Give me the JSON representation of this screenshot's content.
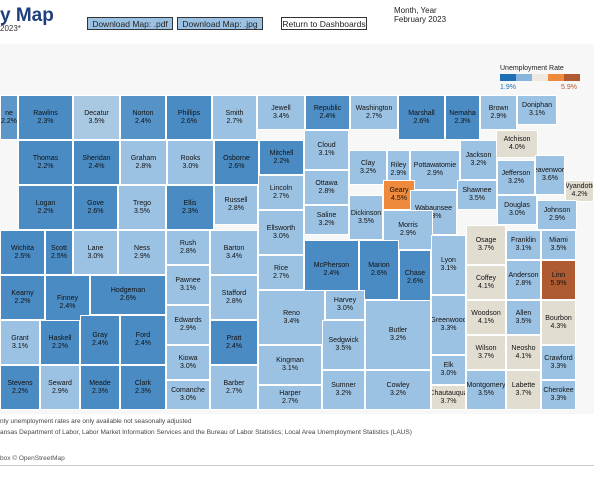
{
  "header": {
    "title": "y Map",
    "subtitle": "2023*",
    "btn_pdf": "Download Map: .pdf",
    "btn_jpg": "Download Map: .jpg",
    "btn_dash": "Return to Dashboards",
    "month_label": "Month, Year",
    "month_value": "February 2023"
  },
  "legend": {
    "title": "Unemployment Rate",
    "min": "1.9%",
    "max": "5.9%",
    "colors": [
      "#1f6fb4",
      "#86b4dc",
      "#eeeae2",
      "#ef8a3c",
      "#b05a32"
    ]
  },
  "footnote1": "nty unemployment rates are only available not seasonally adjusted",
  "footnote2": "ansas Department of Labor, Labor Market Information Services and the Bureau of Labor Statistics; Local Area Unemployment Statistics (LAUS)",
  "attribution": "box © OpenStreetMap",
  "counties": [
    {
      "name": "ne",
      "rate": "2.2%",
      "c": "#5d97c9"
    },
    {
      "name": "Rawlins",
      "rate": "2.3%",
      "c": "#4a8bc4"
    },
    {
      "name": "Decatur",
      "rate": "3.5%",
      "c": "#a9c8e2"
    },
    {
      "name": "Norton",
      "rate": "2.4%",
      "c": "#5592c7"
    },
    {
      "name": "Phillips",
      "rate": "2.6%",
      "c": "#4a8bc4"
    },
    {
      "name": "Smith",
      "rate": "2.7%",
      "c": "#9cc2e3"
    },
    {
      "name": "Jewell",
      "rate": "3.4%",
      "c": "#9cc2e3"
    },
    {
      "name": "Republic",
      "rate": "2.4%",
      "c": "#4f8fc5"
    },
    {
      "name": "Washington",
      "rate": "2.7%",
      "c": "#9cc2e3"
    },
    {
      "name": "Marshall",
      "rate": "2.6%",
      "c": "#4a8bc4"
    },
    {
      "name": "Nemaha",
      "rate": "2.3%",
      "c": "#4a8bc4"
    },
    {
      "name": "Brown",
      "rate": "2.9%",
      "c": "#9cc2e3"
    },
    {
      "name": "Doniphan",
      "rate": "3.1%",
      "c": "#9cc2e3"
    },
    {
      "name": "Atchison",
      "rate": "4.0%",
      "c": "#e2ddd1"
    },
    {
      "name": "Thomas",
      "rate": "2.2%",
      "c": "#4a8bc4"
    },
    {
      "name": "Sheridan",
      "rate": "2.4%",
      "c": "#4a8bc4"
    },
    {
      "name": "Graham",
      "rate": "2.8%",
      "c": "#9cc2e3"
    },
    {
      "name": "Rooks",
      "rate": "3.0%",
      "c": "#9cc2e3"
    },
    {
      "name": "Osborne",
      "rate": "2.6%",
      "c": "#4a8bc4"
    },
    {
      "name": "Mitchell",
      "rate": "2.2%",
      "c": "#4a8bc4"
    },
    {
      "name": "Cloud",
      "rate": "3.1%",
      "c": "#9cc2e3"
    },
    {
      "name": "Clay",
      "rate": "3.2%",
      "c": "#9cc2e3"
    },
    {
      "name": "Riley",
      "rate": "2.9%",
      "c": "#9cc2e3"
    },
    {
      "name": "Pottawatomie",
      "rate": "2.9%",
      "c": "#9cc2e3"
    },
    {
      "name": "Jackson",
      "rate": "3.2%",
      "c": "#9cc2e3"
    },
    {
      "name": "Jefferson",
      "rate": "3.2%",
      "c": "#9cc2e3"
    },
    {
      "name": "Leavenworth",
      "rate": "3.6%",
      "c": "#9cc2e3"
    },
    {
      "name": "Wyandotte",
      "rate": "4.2%",
      "c": "#e2ddd1"
    },
    {
      "name": "Logan",
      "rate": "2.2%",
      "c": "#4a8bc4"
    },
    {
      "name": "Gove",
      "rate": "2.6%",
      "c": "#4a8bc4"
    },
    {
      "name": "Trego",
      "rate": "3.5%",
      "c": "#9cc2e3"
    },
    {
      "name": "Ellis",
      "rate": "2.3%",
      "c": "#4a8bc4"
    },
    {
      "name": "Russell",
      "rate": "2.8%",
      "c": "#9cc2e3"
    },
    {
      "name": "Lincoln",
      "rate": "2.7%",
      "c": "#9cc2e3"
    },
    {
      "name": "Ottawa",
      "rate": "2.8%",
      "c": "#9cc2e3"
    },
    {
      "name": "Geary",
      "rate": "4.5%",
      "c": "#ef8a3c"
    },
    {
      "name": "Dickinson",
      "rate": "3.5%",
      "c": "#9cc2e3"
    },
    {
      "name": "Wabaunsee",
      "rate": "3.3%",
      "c": "#9cc2e3"
    },
    {
      "name": "Shawnee",
      "rate": "3.5%",
      "c": "#9cc2e3"
    },
    {
      "name": "Douglas",
      "rate": "3.0%",
      "c": "#9cc2e3"
    },
    {
      "name": "Johnson",
      "rate": "2.9%",
      "c": "#9cc2e3"
    },
    {
      "name": "Saline",
      "rate": "3.2%",
      "c": "#9cc2e3"
    },
    {
      "name": "Ellsworth",
      "rate": "3.0%",
      "c": "#9cc2e3"
    },
    {
      "name": "Morris",
      "rate": "2.9%",
      "c": "#9cc2e3"
    },
    {
      "name": "Osage",
      "rate": "3.7%",
      "c": "#e2ddd1"
    },
    {
      "name": "Franklin",
      "rate": "3.1%",
      "c": "#9cc2e3"
    },
    {
      "name": "Miami",
      "rate": "3.5%",
      "c": "#9cc2e3"
    },
    {
      "name": "Wichita",
      "rate": "2.5%",
      "c": "#4a8bc4"
    },
    {
      "name": "Scott",
      "rate": "2.5%",
      "c": "#4a8bc4"
    },
    {
      "name": "Lane",
      "rate": "3.0%",
      "c": "#9cc2e3"
    },
    {
      "name": "Ness",
      "rate": "2.9%",
      "c": "#9cc2e3"
    },
    {
      "name": "Rush",
      "rate": "2.8%",
      "c": "#9cc2e3"
    },
    {
      "name": "Barton",
      "rate": "3.4%",
      "c": "#9cc2e3"
    },
    {
      "name": "Rice",
      "rate": "2.7%",
      "c": "#9cc2e3"
    },
    {
      "name": "McPherson",
      "rate": "2.4%",
      "c": "#4a8bc4"
    },
    {
      "name": "Marion",
      "rate": "2.6%",
      "c": "#4a8bc4"
    },
    {
      "name": "Chase",
      "rate": "2.6%",
      "c": "#4a8bc4"
    },
    {
      "name": "Lyon",
      "rate": "3.1%",
      "c": "#9cc2e3"
    },
    {
      "name": "Coffey",
      "rate": "4.1%",
      "c": "#e2ddd1"
    },
    {
      "name": "Anderson",
      "rate": "2.8%",
      "c": "#9cc2e3"
    },
    {
      "name": "Linn",
      "rate": "5.9%",
      "c": "#b05a32"
    },
    {
      "name": "Kearny",
      "rate": "2.2%",
      "c": "#4a8bc4"
    },
    {
      "name": "Finney",
      "rate": "2.4%",
      "c": "#4a8bc4"
    },
    {
      "name": "Hodgeman",
      "rate": "2.6%",
      "c": "#4a8bc4"
    },
    {
      "name": "Pawnee",
      "rate": "3.1%",
      "c": "#9cc2e3"
    },
    {
      "name": "Stafford",
      "rate": "2.8%",
      "c": "#9cc2e3"
    },
    {
      "name": "Edwards",
      "rate": "2.9%",
      "c": "#9cc2e3"
    },
    {
      "name": "Reno",
      "rate": "3.4%",
      "c": "#9cc2e3"
    },
    {
      "name": "Harvey",
      "rate": "3.0%",
      "c": "#9cc2e3"
    },
    {
      "name": "Butler",
      "rate": "3.2%",
      "c": "#9cc2e3"
    },
    {
      "name": "Greenwood",
      "rate": "3.3%",
      "c": "#9cc2e3"
    },
    {
      "name": "Woodson",
      "rate": "4.1%",
      "c": "#e2ddd1"
    },
    {
      "name": "Allen",
      "rate": "3.5%",
      "c": "#9cc2e3"
    },
    {
      "name": "Bourbon",
      "rate": "4.3%",
      "c": "#e2ddd1"
    },
    {
      "name": "Gray",
      "rate": "2.4%",
      "c": "#4a8bc4"
    },
    {
      "name": "Ford",
      "rate": "2.4%",
      "c": "#4a8bc4"
    },
    {
      "name": "Kiowa",
      "rate": "3.0%",
      "c": "#9cc2e3"
    },
    {
      "name": "Pratt",
      "rate": "2.4%",
      "c": "#4a8bc4"
    },
    {
      "name": "Kingman",
      "rate": "3.1%",
      "c": "#9cc2e3"
    },
    {
      "name": "Sedgwick",
      "rate": "3.5%",
      "c": "#9cc2e3"
    },
    {
      "name": "Grant",
      "rate": "3.1%",
      "c": "#9cc2e3"
    },
    {
      "name": "Haskell",
      "rate": "2.2%",
      "c": "#4a8bc4"
    },
    {
      "name": "Elk",
      "rate": "3.0%",
      "c": "#9cc2e3"
    },
    {
      "name": "Wilson",
      "rate": "3.7%",
      "c": "#e2ddd1"
    },
    {
      "name": "Neosho",
      "rate": "4.1%",
      "c": "#e2ddd1"
    },
    {
      "name": "Crawford",
      "rate": "3.3%",
      "c": "#9cc2e3"
    },
    {
      "name": "Stevens",
      "rate": "2.2%",
      "c": "#4a8bc4"
    },
    {
      "name": "Seward",
      "rate": "2.9%",
      "c": "#9cc2e3"
    },
    {
      "name": "Meade",
      "rate": "2.3%",
      "c": "#4a8bc4"
    },
    {
      "name": "Clark",
      "rate": "2.3%",
      "c": "#4a8bc4"
    },
    {
      "name": "Comanche",
      "rate": "3.0%",
      "c": "#9cc2e3"
    },
    {
      "name": "Barber",
      "rate": "2.7%",
      "c": "#9cc2e3"
    },
    {
      "name": "Harper",
      "rate": "2.7%",
      "c": "#9cc2e3"
    },
    {
      "name": "Sumner",
      "rate": "3.2%",
      "c": "#9cc2e3"
    },
    {
      "name": "Cowley",
      "rate": "3.2%",
      "c": "#9cc2e3"
    },
    {
      "name": "Chautauqua",
      "rate": "3.7%",
      "c": "#e2ddd1"
    },
    {
      "name": "Montgomery",
      "rate": "3.5%",
      "c": "#9cc2e3"
    },
    {
      "name": "Labette",
      "rate": "3.7%",
      "c": "#e2ddd1"
    },
    {
      "name": "Cherokee",
      "rate": "3.3%",
      "c": "#9cc2e3"
    }
  ]
}
